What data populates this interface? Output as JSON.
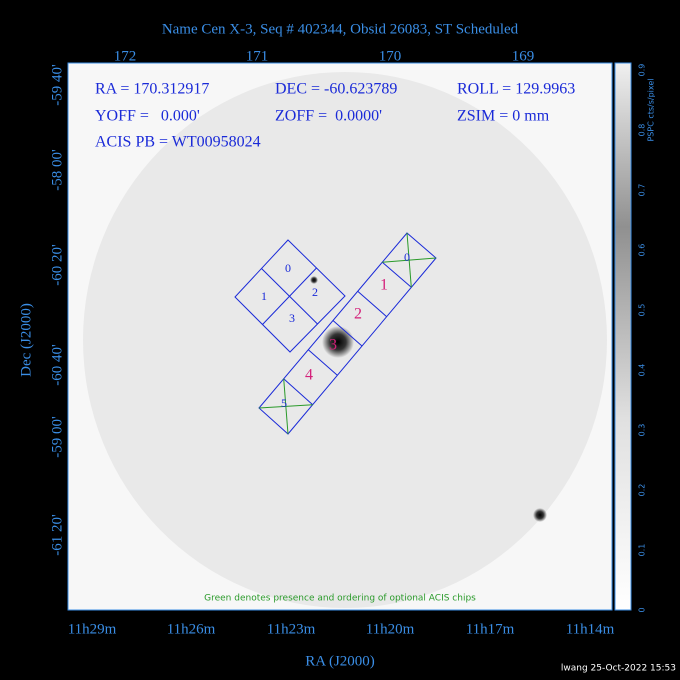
{
  "title": "Name Cen X-3, Seq # 402344, Obsid 26083, ST Scheduled",
  "top_axis": {
    "labels": [
      "172",
      "171",
      "170",
      "169"
    ]
  },
  "left_axis": {
    "labels": [
      "-59 40'",
      "-58 00'",
      "-60 20'",
      "-60 40'",
      "-59 00'",
      "-61 20'"
    ]
  },
  "bottom_axis": {
    "labels": [
      "11h29m",
      "11h26m",
      "11h23m",
      "11h20m",
      "11h17m",
      "11h14m"
    ]
  },
  "x_label": "RA (J2000)",
  "y_label": "Dec (J2000)",
  "colorbar": {
    "label": "PSPC cts/s/pixel",
    "ticks": [
      "0",
      "0.1",
      "0.2",
      "0.3",
      "0.4",
      "0.5",
      "0.6",
      "0.7",
      "0.8",
      "0.9"
    ]
  },
  "info": {
    "ra": "RA = 170.312917",
    "dec": "DEC = -60.623789",
    "roll": "ROLL = 129.9963",
    "yoff": "YOFF =   0.000'",
    "zoff": "ZOFF =  0.0000'",
    "zsim": "ZSIM = 0 mm",
    "acis_pb": "ACIS PB = WT00958024"
  },
  "acis_i": {
    "labels": [
      "0",
      "1",
      "2",
      "3"
    ]
  },
  "acis_s": {
    "labels": [
      "0",
      "1",
      "2",
      "3",
      "4",
      "5"
    ]
  },
  "footnote": "Green denotes presence and ordering of optional ACIS chips",
  "credit": "lwang 25-Oct-2022 15:53"
}
